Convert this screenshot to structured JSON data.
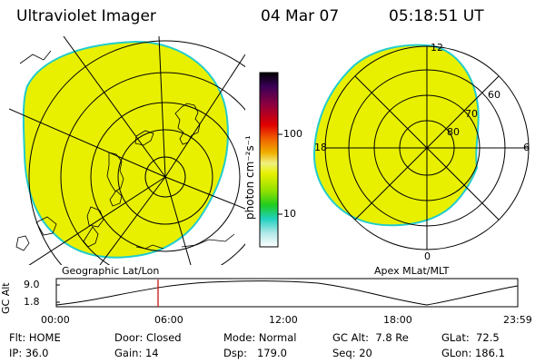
{
  "header": {
    "title": "Ultraviolet Imager",
    "date": "04 Mar 07",
    "time": "05:18:51 UT"
  },
  "left_map": {
    "caption": "Geographic Lat/Lon",
    "fill_color": "#e8f000"
  },
  "right_map": {
    "caption": "Apex MLat/MLT",
    "fill_color": "#e8f000",
    "mlt_labels": [
      "12",
      "6",
      "0",
      "18"
    ],
    "mlat_labels": [
      "60",
      "70",
      "80"
    ]
  },
  "colorbar": {
    "unit_label": "photon cm⁻²s⁻¹",
    "ticks": [
      "100",
      "10"
    ]
  },
  "orbit_panel": {
    "y_label": "GC Alt",
    "y_ticks": [
      "9.0",
      "1.8"
    ],
    "x_ticks": [
      "00:00",
      "06:00",
      "12:00",
      "18:00",
      "23:59"
    ],
    "marker_color": "#cc0000"
  },
  "footer": {
    "col1": [
      "Flt: HOME",
      "IP: 36.0"
    ],
    "col2": [
      "Door: Closed",
      "Gain: 14"
    ],
    "col3": [
      "Mode: Normal",
      "Dsp:   179.0"
    ],
    "col4": [
      "GC Alt:  7.8 Re",
      "Seq: 20"
    ],
    "col5": [
      "GLat:  72.5",
      "GLon: 186.1"
    ]
  }
}
